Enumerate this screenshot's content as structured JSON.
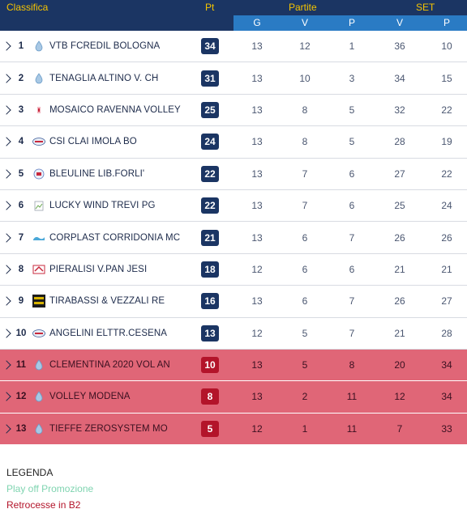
{
  "header": {
    "classifica": "Classifica",
    "pt": "Pt",
    "partite": "Partite",
    "set": "SET",
    "sub": [
      "G",
      "V",
      "P",
      "V",
      "P"
    ]
  },
  "rows": [
    {
      "pos": "1",
      "team": "VTB FCREDIL BOLOGNA",
      "pt": "34",
      "g": "13",
      "v": "12",
      "p": "1",
      "sv": "36",
      "sp": "10",
      "logo": "drop-logo-icon",
      "relegation": false
    },
    {
      "pos": "2",
      "team": "TENAGLIA ALTINO V. CH",
      "pt": "31",
      "g": "13",
      "v": "10",
      "p": "3",
      "sv": "34",
      "sp": "15",
      "logo": "drop-logo-icon",
      "relegation": false
    },
    {
      "pos": "3",
      "team": "MOSAICO RAVENNA VOLLEY",
      "pt": "25",
      "g": "13",
      "v": "8",
      "p": "5",
      "sv": "32",
      "sp": "22",
      "logo": "small-logo-icon",
      "relegation": false
    },
    {
      "pos": "4",
      "team": "CSI CLAI IMOLA BO",
      "pt": "24",
      "g": "13",
      "v": "8",
      "p": "5",
      "sv": "28",
      "sp": "19",
      "logo": "oval-logo-icon",
      "relegation": false
    },
    {
      "pos": "5",
      "team": "BLEULINE LIB.FORLI'",
      "pt": "22",
      "g": "13",
      "v": "7",
      "p": "6",
      "sv": "27",
      "sp": "22",
      "logo": "shield-logo-icon",
      "relegation": false
    },
    {
      "pos": "6",
      "team": "LUCKY WIND TREVI PG",
      "pt": "22",
      "g": "13",
      "v": "7",
      "p": "6",
      "sv": "25",
      "sp": "24",
      "logo": "broken-image-icon",
      "relegation": false
    },
    {
      "pos": "7",
      "team": "CORPLAST CORRIDONIA MC",
      "pt": "21",
      "g": "13",
      "v": "6",
      "p": "7",
      "sv": "26",
      "sp": "26",
      "logo": "wave-logo-icon",
      "relegation": false
    },
    {
      "pos": "8",
      "team": "PIERALISI V.PAN JESI",
      "pt": "18",
      "g": "12",
      "v": "6",
      "p": "6",
      "sv": "21",
      "sp": "21",
      "logo": "red-logo-icon",
      "relegation": false
    },
    {
      "pos": "9",
      "team": "TIRABASSI & VEZZALI RE",
      "pt": "16",
      "g": "13",
      "v": "6",
      "p": "7",
      "sv": "26",
      "sp": "27",
      "logo": "dark-logo-icon",
      "relegation": false
    },
    {
      "pos": "10",
      "team": "ANGELINI ELTTR.CESENA",
      "pt": "13",
      "g": "12",
      "v": "5",
      "p": "7",
      "sv": "21",
      "sp": "28",
      "logo": "oval-logo-icon",
      "relegation": false
    },
    {
      "pos": "11",
      "team": "CLEMENTINA 2020 VOL AN",
      "pt": "10",
      "g": "13",
      "v": "5",
      "p": "8",
      "sv": "20",
      "sp": "34",
      "logo": "drop-logo-icon",
      "relegation": true
    },
    {
      "pos": "12",
      "team": "VOLLEY MODENA",
      "pt": "8",
      "g": "13",
      "v": "2",
      "p": "11",
      "sv": "12",
      "sp": "34",
      "logo": "drop-logo-icon",
      "relegation": true
    },
    {
      "pos": "13",
      "team": "TIEFFE ZEROSYSTEM MO",
      "pt": "5",
      "g": "12",
      "v": "1",
      "p": "11",
      "sv": "7",
      "sp": "33",
      "logo": "drop-logo-icon",
      "relegation": true
    }
  ],
  "legend": {
    "title": "LEGENDA",
    "playoff": "Play off Promozione",
    "relegation": "Retrocesse in B2"
  },
  "colors": {
    "header_bg": "#1b3563",
    "header_text": "#f5c400",
    "subheader_bg": "#2a7bc4",
    "relegation_row": "#e06677",
    "relegation_badge": "#b3142a",
    "playoff_text": "#7fd4b0"
  }
}
